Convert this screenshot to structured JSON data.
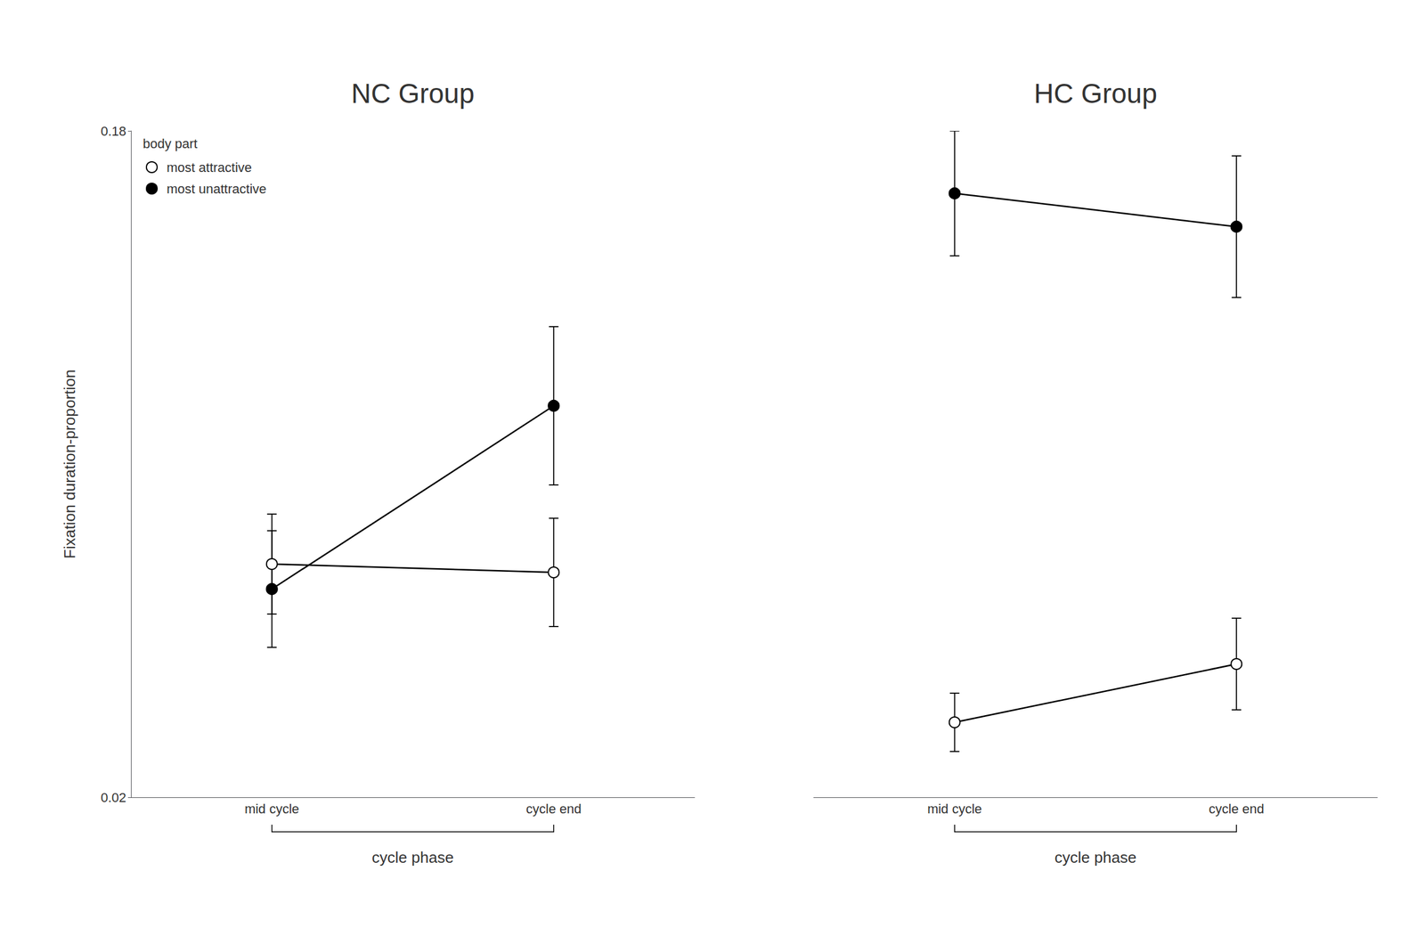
{
  "chart_data": [
    {
      "type": "line",
      "title": "NC Group",
      "y_label": "Fixation duration-proportion",
      "x_label": "cycle phase",
      "categories": [
        "mid cycle",
        "cycle end"
      ],
      "series": [
        {
          "name": "most attractive",
          "color": "#000000",
          "marker": "emptyCircle",
          "values": [
            0.076,
            0.074
          ],
          "errors": [
            0.012,
            0.013
          ]
        },
        {
          "name": "most unattractive",
          "color": "#000000",
          "marker": "circle",
          "values": [
            0.07,
            0.114
          ],
          "errors": [
            0.014,
            0.019
          ]
        }
      ],
      "ylim": [
        0.02,
        0.18
      ],
      "yticks": [
        0.02,
        0.18
      ],
      "grid": false,
      "legend": "upper left",
      "legend_title": "body part"
    },
    {
      "type": "line",
      "title": "HC Group",
      "x_label": "cycle phase",
      "categories": [
        "mid cycle",
        "cycle end"
      ],
      "series": [
        {
          "color": "#000000",
          "marker": "emptyCircle",
          "values": [
            0.038,
            0.052
          ],
          "errors": [
            0.007,
            0.011
          ]
        },
        {
          "color": "#000000",
          "marker": "circle",
          "values": [
            0.165,
            0.157
          ],
          "errors": [
            0.015,
            0.017
          ]
        }
      ],
      "ylim": [
        0.02,
        0.18
      ],
      "yticks": [
        0.02,
        0.18
      ],
      "grid": false,
      "tick_labels": "x"
    }
  ]
}
